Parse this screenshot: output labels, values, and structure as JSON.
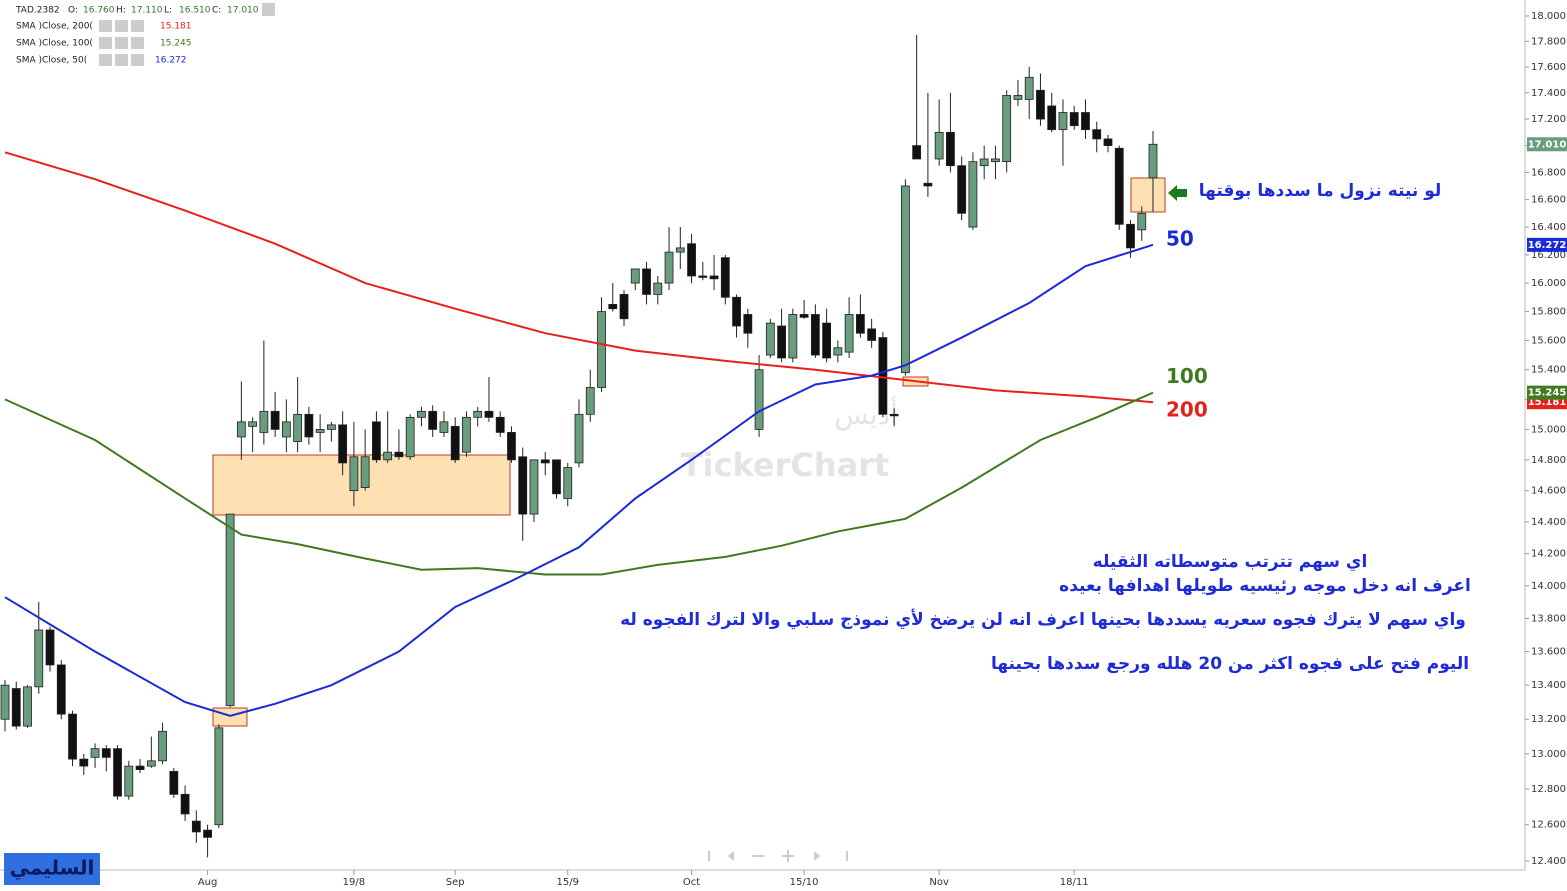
{
  "chart_data": {
    "type": "candlestick",
    "log_scale": true,
    "grid": false,
    "header": {
      "symbol": "TAD.2382",
      "ohlc": [
        [
          "O:",
          "16.760"
        ],
        [
          "H:",
          "17.110"
        ],
        [
          "L:",
          "16.510"
        ],
        [
          "C:",
          "17.010"
        ]
      ]
    },
    "close_label": "17.010",
    "up_color": "#6a9c7e",
    "down_color": "#111111",
    "open": [
      13.2,
      13.38,
      13.16,
      13.39,
      13.73,
      13.52,
      13.23,
      12.97,
      12.98,
      13.03,
      13.03,
      12.76,
      12.93,
      12.93,
      12.96,
      12.9,
      12.77,
      12.62,
      12.57,
      12.6,
      13.28,
      14.95,
      15.02,
      14.98,
      15.12,
      14.95,
      14.92,
      15.1,
      14.98,
      15.0,
      15.03,
      14.6,
      14.62,
      15.05,
      14.8,
      14.85,
      14.82,
      15.08,
      15.12,
      14.98,
      15.02,
      14.85,
      15.08,
      15.12,
      15.08,
      14.98,
      14.82,
      14.45,
      14.8,
      14.8,
      14.55,
      14.78,
      15.1,
      15.28,
      15.85,
      15.92,
      16.0,
      16.1,
      15.92,
      16.0,
      16.22,
      16.28,
      16.05,
      16.05,
      16.18,
      15.9,
      15.78,
      15.0,
      15.5,
      15.7,
      15.48,
      15.78,
      15.78,
      15.72,
      15.5,
      15.52,
      15.78,
      15.68,
      15.62,
      15.1,
      15.38,
      17.0,
      16.72,
      16.9,
      17.1,
      16.85,
      16.4,
      16.85,
      16.88,
      16.88,
      17.35,
      17.35,
      17.42,
      17.3,
      17.12,
      17.25,
      17.25,
      17.12,
      17.05,
      16.98,
      16.42,
      16.38,
      16.76
    ],
    "high": [
      13.43,
      13.42,
      13.4,
      13.9,
      13.75,
      13.55,
      13.25,
      13.0,
      13.06,
      13.05,
      13.05,
      12.96,
      12.97,
      13.1,
      13.18,
      12.92,
      12.82,
      12.68,
      12.6,
      13.17,
      14.45,
      15.32,
      15.08,
      15.6,
      15.25,
      15.2,
      15.35,
      15.15,
      15.1,
      15.05,
      15.12,
      15.05,
      15.0,
      15.12,
      15.12,
      15.0,
      15.1,
      15.15,
      15.16,
      15.12,
      15.08,
      15.12,
      15.15,
      15.35,
      15.12,
      15.02,
      14.88,
      14.8,
      14.85,
      14.8,
      14.78,
      15.2,
      15.4,
      15.9,
      16.0,
      15.95,
      16.1,
      16.15,
      16.05,
      16.4,
      16.4,
      16.35,
      16.15,
      16.2,
      16.2,
      15.92,
      15.82,
      15.5,
      15.75,
      15.82,
      15.82,
      15.88,
      15.85,
      15.82,
      15.6,
      15.9,
      15.92,
      15.75,
      15.66,
      15.14,
      16.75,
      17.85,
      17.4,
      17.35,
      17.4,
      16.92,
      16.95,
      17.0,
      17.0,
      17.42,
      17.5,
      17.6,
      17.55,
      17.4,
      17.35,
      17.3,
      17.35,
      17.18,
      17.08,
      17.0,
      16.45,
      16.55,
      17.11
    ],
    "low": [
      13.13,
      13.14,
      13.15,
      13.35,
      13.48,
      13.2,
      12.93,
      12.88,
      12.92,
      12.9,
      12.74,
      12.74,
      12.89,
      12.92,
      12.94,
      12.75,
      12.62,
      12.5,
      12.42,
      12.58,
      13.27,
      14.8,
      14.85,
      14.9,
      14.95,
      14.85,
      14.85,
      14.9,
      14.85,
      14.92,
      14.7,
      14.5,
      14.6,
      14.78,
      14.78,
      14.8,
      14.8,
      15.02,
      14.95,
      14.95,
      14.78,
      14.82,
      15.02,
      15.05,
      14.95,
      14.78,
      14.28,
      14.4,
      14.7,
      14.55,
      14.5,
      14.75,
      15.05,
      15.25,
      15.8,
      15.7,
      15.95,
      15.85,
      15.85,
      15.95,
      16.1,
      16.0,
      16.02,
      15.95,
      15.85,
      15.62,
      15.55,
      14.95,
      15.48,
      15.45,
      15.45,
      15.75,
      15.48,
      15.45,
      15.45,
      15.48,
      15.62,
      15.55,
      15.08,
      15.02,
      15.36,
      16.9,
      16.62,
      16.85,
      16.8,
      16.45,
      16.38,
      16.75,
      16.75,
      16.8,
      17.3,
      17.2,
      17.15,
      17.1,
      16.85,
      17.12,
      17.05,
      16.95,
      16.95,
      16.38,
      16.18,
      16.3,
      16.51
    ],
    "close": [
      13.4,
      13.16,
      13.39,
      13.73,
      13.52,
      13.23,
      12.97,
      12.93,
      13.03,
      12.98,
      12.76,
      12.93,
      12.91,
      12.96,
      13.13,
      12.77,
      12.66,
      12.56,
      12.53,
      13.15,
      14.45,
      15.05,
      15.05,
      15.12,
      15.0,
      15.05,
      15.1,
      14.95,
      15.0,
      15.03,
      14.78,
      14.82,
      14.82,
      14.8,
      14.85,
      14.82,
      15.08,
      15.12,
      15.0,
      15.05,
      14.8,
      15.08,
      15.12,
      15.08,
      14.98,
      14.8,
      14.45,
      14.8,
      14.78,
      14.58,
      14.75,
      15.1,
      15.28,
      15.8,
      15.82,
      15.75,
      16.1,
      15.92,
      16.0,
      16.22,
      16.25,
      16.05,
      16.04,
      16.03,
      15.9,
      15.7,
      15.65,
      15.4,
      15.72,
      15.48,
      15.78,
      15.76,
      15.5,
      15.48,
      15.55,
      15.78,
      15.65,
      15.6,
      15.1,
      15.09,
      16.7,
      16.9,
      16.7,
      17.1,
      16.85,
      16.5,
      16.88,
      16.9,
      16.9,
      17.38,
      17.38,
      17.52,
      17.2,
      17.12,
      17.25,
      17.15,
      17.12,
      17.05,
      17.0,
      16.42,
      16.25,
      16.5,
      17.01
    ],
    "xticks": [
      {
        "value": 18,
        "label": "Aug"
      },
      {
        "value": 31,
        "label": "19/8"
      },
      {
        "value": 40,
        "label": "Sep"
      },
      {
        "value": 50,
        "label": "15/9"
      },
      {
        "value": 61,
        "label": "Oct"
      },
      {
        "value": 71,
        "label": "15/10"
      },
      {
        "value": 83,
        "label": "Nov"
      },
      {
        "value": 95,
        "label": "18/11"
      }
    ],
    "xlim": [
      0,
      102
    ],
    "ylim": [
      12.4,
      18.0
    ],
    "yticks": [
      {
        "value": 12.4,
        "label": "12.400"
      },
      {
        "value": 12.6,
        "label": "12.600"
      },
      {
        "value": 12.8,
        "label": "12.800"
      },
      {
        "value": 13.0,
        "label": "13.000"
      },
      {
        "value": 13.2,
        "label": "13.200"
      },
      {
        "value": 13.4,
        "label": "13.400"
      },
      {
        "value": 13.6,
        "label": "13.600"
      },
      {
        "value": 13.8,
        "label": "13.800"
      },
      {
        "value": 14.0,
        "label": "14.000"
      },
      {
        "value": 14.2,
        "label": "14.200"
      },
      {
        "value": 14.4,
        "label": "14.400"
      },
      {
        "value": 14.6,
        "label": "14.600"
      },
      {
        "value": 14.8,
        "label": "14.800"
      },
      {
        "value": 15.0,
        "label": "15.000"
      },
      {
        "value": 15.2,
        "label": "15.200"
      },
      {
        "value": 15.4,
        "label": "15.400"
      },
      {
        "value": 15.6,
        "label": "15.600"
      },
      {
        "value": 15.8,
        "label": "15.800"
      },
      {
        "value": 16.0,
        "label": "16.000"
      },
      {
        "value": 16.2,
        "label": "16.200"
      },
      {
        "value": 16.4,
        "label": "16.400"
      },
      {
        "value": 16.6,
        "label": "16.600"
      },
      {
        "value": 16.8,
        "label": "16.800"
      },
      {
        "value": 17.0,
        "label": "17.000"
      },
      {
        "value": 17.2,
        "label": "17.200"
      },
      {
        "value": 17.4,
        "label": "17.400"
      },
      {
        "value": 17.6,
        "label": "17.600"
      },
      {
        "value": 17.8,
        "label": "17.800"
      },
      {
        "value": 18.0,
        "label": "18.000"
      }
    ],
    "series": [
      {
        "name": "SMA  )Close, 200(",
        "value_label": "15.181",
        "tag": "200",
        "color": "#e8201c",
        "x": [
          0,
          8,
          16,
          24,
          32,
          40,
          48,
          56,
          64,
          72,
          80,
          88,
          96,
          102
        ],
        "values": [
          16.95,
          16.75,
          16.52,
          16.28,
          16.0,
          15.82,
          15.65,
          15.53,
          15.46,
          15.4,
          15.33,
          15.26,
          15.22,
          15.181
        ]
      },
      {
        "name": "SMA  )Close, 100(",
        "value_label": "15.245",
        "tag": "100",
        "color": "#3f7a1e",
        "x": [
          0,
          8,
          16,
          21,
          26,
          32,
          37,
          42,
          48,
          53,
          58,
          64,
          69,
          74,
          80,
          85,
          92,
          97,
          102
        ],
        "values": [
          15.2,
          14.93,
          14.55,
          14.32,
          14.26,
          14.17,
          14.1,
          14.11,
          14.07,
          14.07,
          14.13,
          14.18,
          14.25,
          14.34,
          14.42,
          14.62,
          14.93,
          15.08,
          15.245
        ]
      },
      {
        "name": "SMA  )Close, 50(",
        "value_label": "16.272",
        "tag": "50",
        "color": "#1a2ad8",
        "x": [
          0,
          8,
          16,
          20,
          24,
          29,
          35,
          40,
          45,
          51,
          56,
          61,
          67,
          72,
          77,
          80,
          85,
          91,
          96,
          102
        ],
        "values": [
          13.93,
          13.6,
          13.3,
          13.22,
          13.29,
          13.4,
          13.6,
          13.87,
          14.03,
          14.24,
          14.55,
          14.8,
          15.12,
          15.3,
          15.36,
          15.43,
          15.62,
          15.86,
          16.12,
          16.272
        ]
      }
    ],
    "annotations": [
      "لو نيته نزول ما سددها بوقتها",
      "اي سهم تترتب متوسطاته الثقيله",
      "اعرف انه دخل موجه رئيسيه طويلها اهدافها بعيده",
      "واي سهم لا يترك فجوه سعريه يسددها بحينها اعرف انه لن يرضخ لأي نموذج سلبي والا لترك الفجوه له",
      "اليوم فتح على فجوه اكثر من 20 هلله ورجع سددها بحينها"
    ],
    "watermark": [
      "أديس",
      "TickerChart"
    ],
    "signature": "السليمي"
  }
}
